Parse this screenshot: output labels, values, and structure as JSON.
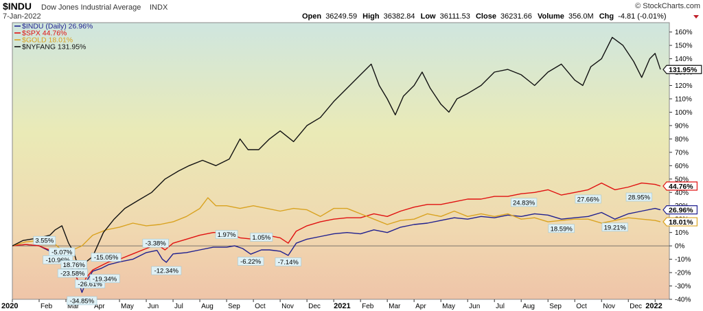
{
  "header": {
    "symbol": "$INDU",
    "name": "Dow Jones Industrial Average",
    "exchange": "INDX",
    "date": "7-Jan-2022",
    "watermark": "© StockCharts.com",
    "ohlc": {
      "open_label": "Open",
      "open": "36249.59",
      "high_label": "High",
      "high": "36382.84",
      "low_label": "Low",
      "low": "36111.53",
      "close_label": "Close",
      "close": "36231.66",
      "volume_label": "Volume",
      "volume": "356.0M",
      "chg_label": "Chg",
      "chg": "-4.81 (-0.01%)"
    }
  },
  "chart_data": {
    "type": "line",
    "ylim": [
      -40,
      167
    ],
    "yticks": [
      "160%",
      "150%",
      "140%",
      "130%",
      "120%",
      "110%",
      "100%",
      "90%",
      "80%",
      "70%",
      "60%",
      "50%",
      "40%",
      "30%",
      "20%",
      "10%",
      "0%",
      "-10%",
      "-20%",
      "-30%",
      "-40%"
    ],
    "ytick_values": [
      160,
      150,
      140,
      130,
      120,
      110,
      100,
      90,
      80,
      70,
      60,
      50,
      40,
      30,
      20,
      10,
      0,
      -10,
      -20,
      -30,
      -40
    ],
    "xlim": [
      0,
      24.25
    ],
    "xticks": [
      {
        "label": "2020",
        "m": 0,
        "major": true
      },
      {
        "label": "Feb",
        "m": 1
      },
      {
        "label": "Mar",
        "m": 2
      },
      {
        "label": "Apr",
        "m": 3
      },
      {
        "label": "May",
        "m": 4
      },
      {
        "label": "Jun",
        "m": 5
      },
      {
        "label": "Jul",
        "m": 6
      },
      {
        "label": "Aug",
        "m": 7
      },
      {
        "label": "Sep",
        "m": 8
      },
      {
        "label": "Oct",
        "m": 9
      },
      {
        "label": "Nov",
        "m": 10
      },
      {
        "label": "Dec",
        "m": 11
      },
      {
        "label": "2021",
        "m": 12,
        "major": true
      },
      {
        "label": "Feb",
        "m": 13
      },
      {
        "label": "Mar",
        "m": 14
      },
      {
        "label": "Apr",
        "m": 15
      },
      {
        "label": "May",
        "m": 16
      },
      {
        "label": "Jun",
        "m": 17
      },
      {
        "label": "Jul",
        "m": 18
      },
      {
        "label": "Aug",
        "m": 19
      },
      {
        "label": "Sep",
        "m": 20
      },
      {
        "label": "Oct",
        "m": 21
      },
      {
        "label": "Nov",
        "m": 22
      },
      {
        "label": "Dec",
        "m": 23
      },
      {
        "label": "2022",
        "m": 24,
        "major": true
      }
    ],
    "legend_position": "top-left",
    "grid": false,
    "series": [
      {
        "name": "$INDU (Daily) 26.96%",
        "color": "#1f1f8f",
        "end_label": "26.96%",
        "points": [
          [
            0,
            0
          ],
          [
            0.5,
            1
          ],
          [
            1,
            0
          ],
          [
            1.5,
            -5
          ],
          [
            1.85,
            -8
          ],
          [
            2,
            -11
          ],
          [
            2.2,
            -15
          ],
          [
            2.45,
            -26
          ],
          [
            2.6,
            -34.85
          ],
          [
            2.75,
            -27
          ],
          [
            3,
            -19
          ],
          [
            3.3,
            -17
          ],
          [
            3.6,
            -14
          ],
          [
            4,
            -12
          ],
          [
            4.5,
            -10
          ],
          [
            5,
            -5
          ],
          [
            5.4,
            -3.38
          ],
          [
            5.6,
            -10
          ],
          [
            5.75,
            -12.34
          ],
          [
            6,
            -6
          ],
          [
            6.5,
            -5
          ],
          [
            7,
            -3
          ],
          [
            7.5,
            -1
          ],
          [
            8,
            -1
          ],
          [
            8.3,
            0
          ],
          [
            8.6,
            -2
          ],
          [
            8.9,
            -6.22
          ],
          [
            9.3,
            -3
          ],
          [
            9.6,
            -3
          ],
          [
            10,
            -4
          ],
          [
            10.3,
            -7.14
          ],
          [
            10.6,
            2
          ],
          [
            11,
            5
          ],
          [
            11.5,
            7
          ],
          [
            12,
            9
          ],
          [
            12.5,
            10
          ],
          [
            13,
            9
          ],
          [
            13.5,
            12
          ],
          [
            14,
            10
          ],
          [
            14.5,
            14
          ],
          [
            15,
            16
          ],
          [
            15.5,
            17
          ],
          [
            16,
            19
          ],
          [
            16.5,
            21
          ],
          [
            17,
            20
          ],
          [
            17.5,
            22
          ],
          [
            18,
            21
          ],
          [
            18.5,
            23
          ],
          [
            19,
            22
          ],
          [
            19.5,
            24
          ],
          [
            20,
            23
          ],
          [
            20.5,
            20
          ],
          [
            21,
            21
          ],
          [
            21.5,
            22
          ],
          [
            22,
            25
          ],
          [
            22.5,
            20
          ],
          [
            23,
            24
          ],
          [
            23.5,
            26
          ],
          [
            24,
            28
          ],
          [
            24.2,
            26.96
          ]
        ]
      },
      {
        "name": "$SPX 44.76%",
        "color": "#e01010",
        "end_label": "44.76%",
        "points": [
          [
            0,
            0
          ],
          [
            0.5,
            1
          ],
          [
            1,
            0
          ],
          [
            1.5,
            -4
          ],
          [
            1.85,
            -8
          ],
          [
            2,
            -12
          ],
          [
            2.2,
            -16
          ],
          [
            2.45,
            -26
          ],
          [
            2.6,
            -31
          ],
          [
            2.75,
            -24
          ],
          [
            3,
            -18
          ],
          [
            3.3,
            -15
          ],
          [
            3.6,
            -12
          ],
          [
            4,
            -10
          ],
          [
            4.5,
            -6
          ],
          [
            5,
            -2
          ],
          [
            5.4,
            1
          ],
          [
            5.7,
            -3
          ],
          [
            6,
            2
          ],
          [
            6.5,
            5
          ],
          [
            7,
            8
          ],
          [
            7.5,
            10
          ],
          [
            8,
            10
          ],
          [
            8.5,
            6
          ],
          [
            9,
            5
          ],
          [
            9.5,
            8
          ],
          [
            10,
            6
          ],
          [
            10.3,
            2
          ],
          [
            10.6,
            11
          ],
          [
            11,
            15
          ],
          [
            11.5,
            18
          ],
          [
            12,
            20
          ],
          [
            12.5,
            21
          ],
          [
            13,
            21
          ],
          [
            13.5,
            24
          ],
          [
            14,
            22
          ],
          [
            14.5,
            26
          ],
          [
            15,
            29
          ],
          [
            15.5,
            31
          ],
          [
            16,
            31
          ],
          [
            16.5,
            33
          ],
          [
            17,
            35
          ],
          [
            17.5,
            35
          ],
          [
            18,
            37
          ],
          [
            18.5,
            37
          ],
          [
            19,
            39
          ],
          [
            19.5,
            40
          ],
          [
            20,
            42
          ],
          [
            20.5,
            38
          ],
          [
            21,
            40
          ],
          [
            21.5,
            42
          ],
          [
            22,
            47
          ],
          [
            22.5,
            42
          ],
          [
            23,
            44
          ],
          [
            23.5,
            47
          ],
          [
            24,
            46
          ],
          [
            24.2,
            44.76
          ]
        ]
      },
      {
        "name": "$GOLD 18.01%",
        "color": "#d9a21f",
        "end_label": "18.01%",
        "points": [
          [
            0,
            0
          ],
          [
            0.5,
            3
          ],
          [
            1,
            4
          ],
          [
            1.5,
            3
          ],
          [
            2,
            -6
          ],
          [
            2.25,
            -3
          ],
          [
            2.6,
            0
          ],
          [
            3,
            8
          ],
          [
            3.5,
            12
          ],
          [
            4,
            14
          ],
          [
            4.5,
            17
          ],
          [
            5,
            15
          ],
          [
            5.5,
            16
          ],
          [
            6,
            18
          ],
          [
            6.5,
            22
          ],
          [
            7,
            28
          ],
          [
            7.3,
            36
          ],
          [
            7.6,
            30
          ],
          [
            8,
            30
          ],
          [
            8.5,
            28
          ],
          [
            9,
            30
          ],
          [
            9.5,
            28
          ],
          [
            10,
            26
          ],
          [
            10.5,
            28
          ],
          [
            11,
            27
          ],
          [
            11.5,
            22
          ],
          [
            12,
            28
          ],
          [
            12.5,
            28
          ],
          [
            13,
            24
          ],
          [
            13.5,
            20
          ],
          [
            14,
            16
          ],
          [
            14.5,
            19
          ],
          [
            15,
            20
          ],
          [
            15.5,
            24
          ],
          [
            16,
            22
          ],
          [
            16.5,
            26
          ],
          [
            17,
            22
          ],
          [
            17.5,
            24
          ],
          [
            18,
            22
          ],
          [
            18.5,
            24
          ],
          [
            19,
            20
          ],
          [
            19.5,
            21
          ],
          [
            20,
            18
          ],
          [
            20.5,
            19
          ],
          [
            21,
            20
          ],
          [
            21.5,
            20
          ],
          [
            22,
            17
          ],
          [
            22.5,
            19
          ],
          [
            23,
            21
          ],
          [
            23.5,
            20
          ],
          [
            24,
            19
          ],
          [
            24.2,
            18.01
          ]
        ]
      },
      {
        "name": "$NYFANG 131.95%",
        "color": "#111111",
        "end_label": "131.95%",
        "points": [
          [
            0,
            0
          ],
          [
            0.4,
            4
          ],
          [
            1,
            6
          ],
          [
            1.4,
            8
          ],
          [
            1.6,
            12
          ],
          [
            1.85,
            15
          ],
          [
            2.1,
            2
          ],
          [
            2.3,
            -5
          ],
          [
            2.55,
            -22
          ],
          [
            2.75,
            -12
          ],
          [
            3,
            -8
          ],
          [
            3.4,
            10
          ],
          [
            3.8,
            20
          ],
          [
            4.2,
            28
          ],
          [
            4.7,
            34
          ],
          [
            5.2,
            40
          ],
          [
            5.7,
            50
          ],
          [
            6.2,
            56
          ],
          [
            6.6,
            60
          ],
          [
            7.1,
            64
          ],
          [
            7.6,
            60
          ],
          [
            8.1,
            65
          ],
          [
            8.5,
            80
          ],
          [
            8.8,
            72
          ],
          [
            9.2,
            72
          ],
          [
            9.6,
            80
          ],
          [
            10,
            86
          ],
          [
            10.5,
            78
          ],
          [
            11,
            90
          ],
          [
            11.5,
            96
          ],
          [
            12,
            108
          ],
          [
            12.5,
            118
          ],
          [
            13,
            128
          ],
          [
            13.4,
            136
          ],
          [
            13.7,
            120
          ],
          [
            14,
            110
          ],
          [
            14.3,
            98
          ],
          [
            14.6,
            112
          ],
          [
            15,
            120
          ],
          [
            15.3,
            130
          ],
          [
            15.6,
            118
          ],
          [
            16,
            106
          ],
          [
            16.3,
            100
          ],
          [
            16.6,
            110
          ],
          [
            17,
            114
          ],
          [
            17.5,
            120
          ],
          [
            18,
            130
          ],
          [
            18.5,
            132
          ],
          [
            19,
            128
          ],
          [
            19.5,
            120
          ],
          [
            20,
            130
          ],
          [
            20.5,
            136
          ],
          [
            21,
            124
          ],
          [
            21.3,
            120
          ],
          [
            21.6,
            134
          ],
          [
            22,
            140
          ],
          [
            22.4,
            156
          ],
          [
            22.8,
            150
          ],
          [
            23.2,
            138
          ],
          [
            23.5,
            126
          ],
          [
            23.8,
            140
          ],
          [
            24,
            144
          ],
          [
            24.2,
            131.95
          ]
        ]
      }
    ],
    "annotations": [
      {
        "text": "3.55%",
        "x": 1.2,
        "y": 3.55
      },
      {
        "text": "-5.07%",
        "x": 1.85,
        "y": -5.07
      },
      {
        "text": "-10.96%",
        "x": 1.7,
        "y": -10.96
      },
      {
        "text": "18.76%",
        "x": 2.3,
        "y": -14.5
      },
      {
        "text": "-23.58%",
        "x": 2.25,
        "y": -21
      },
      {
        "text": "-26.61%",
        "x": 2.9,
        "y": -29
      },
      {
        "text": "-34.85%",
        "x": 2.6,
        "y": -41.5
      },
      {
        "text": "-15.05%",
        "x": 3.5,
        "y": -9
      },
      {
        "text": "-19.34%",
        "x": 3.45,
        "y": -25
      },
      {
        "text": "-3.38%",
        "x": 5.35,
        "y": 1.5
      },
      {
        "text": "-12.34%",
        "x": 5.75,
        "y": -19
      },
      {
        "text": "1.97%",
        "x": 8.0,
        "y": 8
      },
      {
        "text": "1.05%",
        "x": 9.3,
        "y": 6
      },
      {
        "text": "-6.22%",
        "x": 8.9,
        "y": -12
      },
      {
        "text": "-7.14%",
        "x": 10.3,
        "y": -12.5
      },
      {
        "text": "24.83%",
        "x": 19.1,
        "y": 32
      },
      {
        "text": "27.66%",
        "x": 21.5,
        "y": 34.5
      },
      {
        "text": "28.95%",
        "x": 23.4,
        "y": 36
      },
      {
        "text": "18.59%",
        "x": 20.5,
        "y": 12.5
      },
      {
        "text": "19.21%",
        "x": 22.5,
        "y": 13.5
      }
    ]
  }
}
